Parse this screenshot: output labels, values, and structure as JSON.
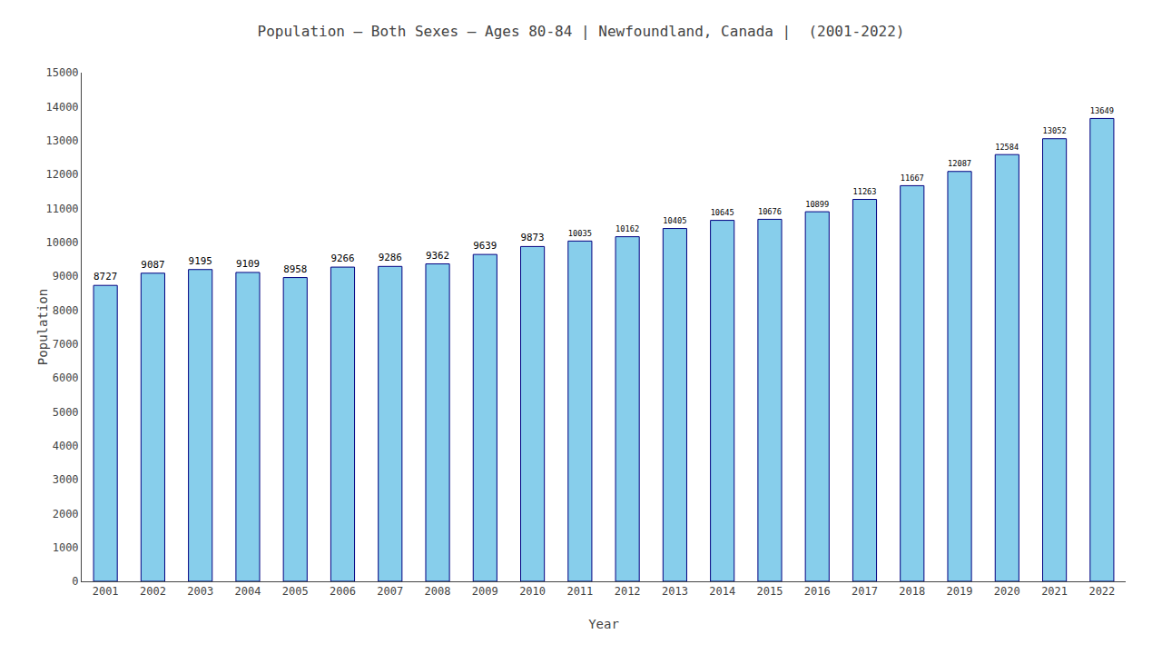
{
  "chart_data": {
    "type": "bar",
    "title": "Population – Both Sexes – Ages 80-84 | Newfoundland, Canada |  (2001-2022)",
    "x_label": "Year",
    "y_label": "Population",
    "categories": [
      "2001",
      "2002",
      "2003",
      "2004",
      "2005",
      "2006",
      "2007",
      "2008",
      "2009",
      "2010",
      "2011",
      "2012",
      "2013",
      "2014",
      "2015",
      "2016",
      "2017",
      "2018",
      "2019",
      "2020",
      "2021",
      "2022"
    ],
    "values": [
      8727,
      9087,
      9195,
      9109,
      8958,
      9266,
      9286,
      9362,
      9639,
      9873,
      10035,
      10162,
      10405,
      10645,
      10676,
      10899,
      11263,
      11667,
      12087,
      12584,
      13052,
      13649
    ],
    "color": "#87CEEB",
    "ylim": [
      0,
      15000
    ],
    "yticks": [
      0,
      1000,
      2000,
      3000,
      4000,
      5000,
      6000,
      7000,
      8000,
      9000,
      10000,
      11000,
      12000,
      13000,
      14000,
      15000
    ],
    "grid": false,
    "data_labels": true
  }
}
